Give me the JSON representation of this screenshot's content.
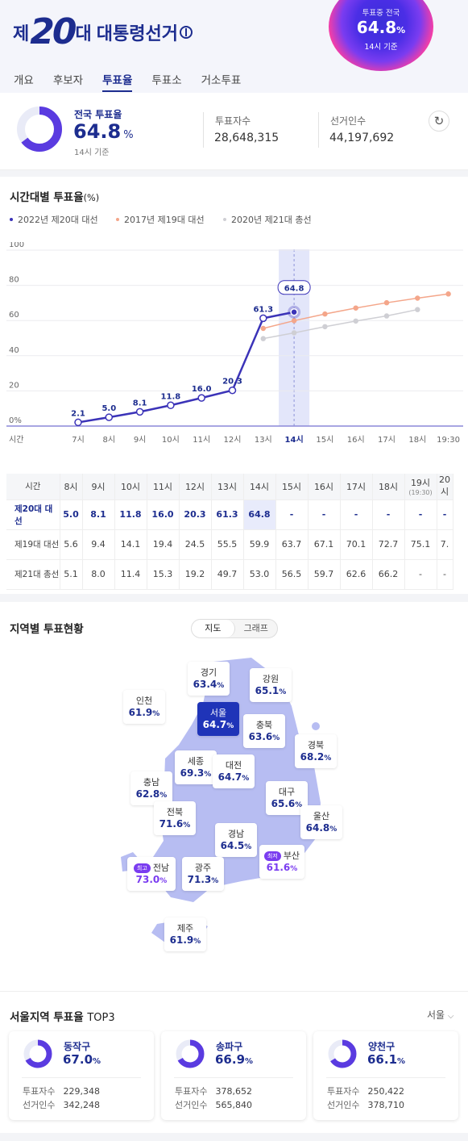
{
  "header": {
    "title_prefix": "제",
    "title_num": "20",
    "title_suffix": "대",
    "title": "대통령선거",
    "orb_label": "투표중 전국",
    "orb_value": "64.8",
    "orb_unit": "%",
    "orb_time": "14시 기준"
  },
  "tabs": [
    {
      "label": "개요"
    },
    {
      "label": "후보자"
    },
    {
      "label": "투표율"
    },
    {
      "label": "투표소"
    },
    {
      "label": "거소투표"
    }
  ],
  "summary": {
    "label": "전국 투표율",
    "value": "64.8",
    "unit": "%",
    "basis": "14시 기준",
    "voters_label": "투표자수",
    "voters": "28,648,315",
    "electorate_label": "선거인수",
    "electorate": "44,197,692",
    "refresh_icon": "refresh-icon"
  },
  "chart_section": {
    "title": "시간대별 투표율",
    "unit": "(%)",
    "legend": [
      {
        "name": "2022년 제20대 대선",
        "color": "#3b33b8"
      },
      {
        "name": "2017년 제19대 대선",
        "color": "#f4a68a"
      },
      {
        "name": "2020년 제21대 총선",
        "color": "#cfcfd4"
      }
    ]
  },
  "chart_data": {
    "type": "line",
    "title": "시간대별 투표율",
    "unit": "%",
    "x": [
      "7시",
      "8시",
      "9시",
      "10시",
      "11시",
      "12시",
      "13시",
      "14시",
      "15시",
      "16시",
      "17시",
      "18시",
      "19:30"
    ],
    "x_axis_name": "시간",
    "ylim": [
      0,
      100
    ],
    "yticks": [
      "0%",
      "20",
      "40",
      "60",
      "80",
      "100"
    ],
    "highlight": "14시",
    "highlight_label": "64.8",
    "series": [
      {
        "name": "2022년 제20대 대선",
        "color": "#3b33b8",
        "values": [
          2.1,
          5.0,
          8.1,
          11.8,
          16.0,
          20.3,
          61.3,
          64.8,
          null,
          null,
          null,
          null,
          null
        ],
        "labels": [
          "2.1",
          "5.0",
          "8.1",
          "11.8",
          "16.0",
          "20.3",
          "61.3",
          "",
          "",
          "",
          "",
          "",
          ""
        ]
      },
      {
        "name": "2017년 제19대 대선",
        "color": "#f4a68a",
        "values": [
          null,
          null,
          null,
          null,
          null,
          null,
          55.5,
          59.9,
          63.7,
          67.1,
          70.1,
          72.7,
          75.1
        ]
      },
      {
        "name": "2020년 제21대 총선",
        "color": "#cfcfd4",
        "values": [
          null,
          null,
          null,
          null,
          null,
          null,
          49.7,
          53.0,
          56.5,
          59.7,
          62.6,
          66.2,
          null
        ]
      }
    ]
  },
  "table": {
    "corner": "시간",
    "cols": [
      "8시",
      "9시",
      "10시",
      "11시",
      "12시",
      "13시",
      "14시",
      "15시",
      "16시",
      "17시",
      "18시",
      "19시",
      "20시"
    ],
    "col19_sub": "(19:30)",
    "rows": [
      {
        "name": "제20대 대선",
        "cells": [
          "5.0",
          "8.1",
          "11.8",
          "16.0",
          "20.3",
          "61.3",
          "64.8",
          "-",
          "-",
          "-",
          "-",
          "-",
          "-"
        ]
      },
      {
        "name": "제19대 대선",
        "cells": [
          "5.6",
          "9.4",
          "14.1",
          "19.4",
          "24.5",
          "55.5",
          "59.9",
          "63.7",
          "67.1",
          "70.1",
          "72.7",
          "75.1",
          "7."
        ]
      },
      {
        "name": "제21대 총선",
        "cells": [
          "5.1",
          "8.0",
          "11.4",
          "15.3",
          "19.2",
          "49.7",
          "53.0",
          "56.5",
          "59.7",
          "62.6",
          "66.2",
          "-",
          "-"
        ]
      }
    ]
  },
  "region": {
    "title": "지역별 투표현황",
    "seg_map": "지도",
    "seg_graph": "그래프",
    "badge_max": "최고",
    "badge_min": "최저",
    "items": [
      {
        "name": "경기",
        "value": "63.4"
      },
      {
        "name": "강원",
        "value": "65.1"
      },
      {
        "name": "인천",
        "value": "61.9"
      },
      {
        "name": "서울",
        "value": "64.7"
      },
      {
        "name": "충북",
        "value": "63.6"
      },
      {
        "name": "경북",
        "value": "68.2"
      },
      {
        "name": "세종",
        "value": "69.3"
      },
      {
        "name": "대전",
        "value": "64.7"
      },
      {
        "name": "충남",
        "value": "62.8"
      },
      {
        "name": "대구",
        "value": "65.6"
      },
      {
        "name": "전북",
        "value": "71.6"
      },
      {
        "name": "울산",
        "value": "64.8"
      },
      {
        "name": "경남",
        "value": "64.5"
      },
      {
        "name": "부산",
        "value": "61.6"
      },
      {
        "name": "전남",
        "value": "73.0"
      },
      {
        "name": "광주",
        "value": "71.3"
      },
      {
        "name": "제주",
        "value": "61.9"
      }
    ]
  },
  "top3": {
    "title": "서울지역 투표율",
    "suffix": "TOP3",
    "dropdown": "서울",
    "voters_label": "투표자수",
    "electorate_label": "선거인수",
    "items": [
      {
        "name": "동작구",
        "value": "67.0",
        "voters": "229,348",
        "electorate": "342,248"
      },
      {
        "name": "송파구",
        "value": "66.9",
        "voters": "378,652",
        "electorate": "565,840"
      },
      {
        "name": "양천구",
        "value": "66.1",
        "voters": "250,422",
        "electorate": "378,710"
      }
    ]
  }
}
